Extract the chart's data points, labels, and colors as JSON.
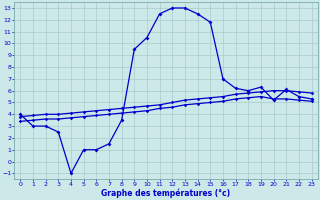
{
  "bg_color": "#cce8e8",
  "grid_color": "#aacccc",
  "line_color": "#0000cc",
  "xlabel": "Graphe des températures (°c)",
  "xlim": [
    -0.5,
    23.5
  ],
  "ylim": [
    -1.5,
    13.5
  ],
  "yticks": [
    -1,
    0,
    1,
    2,
    3,
    4,
    5,
    6,
    7,
    8,
    9,
    10,
    11,
    12,
    13
  ],
  "xticks": [
    0,
    1,
    2,
    3,
    4,
    5,
    6,
    7,
    8,
    9,
    10,
    11,
    12,
    13,
    14,
    15,
    16,
    17,
    18,
    19,
    20,
    21,
    22,
    23
  ],
  "temp_x": [
    0,
    1,
    2,
    3,
    4,
    5,
    6,
    7,
    8,
    9,
    10,
    11,
    12,
    13,
    14,
    15,
    16,
    17,
    18,
    19,
    20,
    21,
    22,
    23
  ],
  "temp_y": [
    4.0,
    3.0,
    3.0,
    2.5,
    -1.0,
    1.0,
    1.0,
    1.5,
    3.5,
    9.5,
    10.5,
    12.5,
    13.0,
    13.0,
    12.5,
    11.8,
    7.0,
    6.2,
    6.0,
    6.3,
    5.2,
    6.1,
    5.5,
    5.3
  ],
  "line2_x": [
    0,
    1,
    2,
    3,
    4,
    5,
    6,
    7,
    8,
    9,
    10,
    11,
    12,
    13,
    14,
    15,
    16,
    17,
    18,
    19,
    20,
    21,
    22,
    23
  ],
  "line2_y": [
    3.8,
    3.9,
    4.0,
    4.0,
    4.1,
    4.2,
    4.3,
    4.4,
    4.5,
    4.6,
    4.7,
    4.8,
    5.0,
    5.2,
    5.3,
    5.4,
    5.5,
    5.7,
    5.8,
    5.9,
    6.0,
    6.0,
    5.9,
    5.8
  ],
  "line3_x": [
    0,
    1,
    2,
    3,
    4,
    5,
    6,
    7,
    8,
    9,
    10,
    11,
    12,
    13,
    14,
    15,
    16,
    17,
    18,
    19,
    20,
    21,
    22,
    23
  ],
  "line3_y": [
    3.4,
    3.5,
    3.6,
    3.6,
    3.7,
    3.8,
    3.9,
    4.0,
    4.1,
    4.2,
    4.3,
    4.5,
    4.6,
    4.8,
    4.9,
    5.0,
    5.1,
    5.3,
    5.4,
    5.5,
    5.3,
    5.3,
    5.2,
    5.1
  ]
}
